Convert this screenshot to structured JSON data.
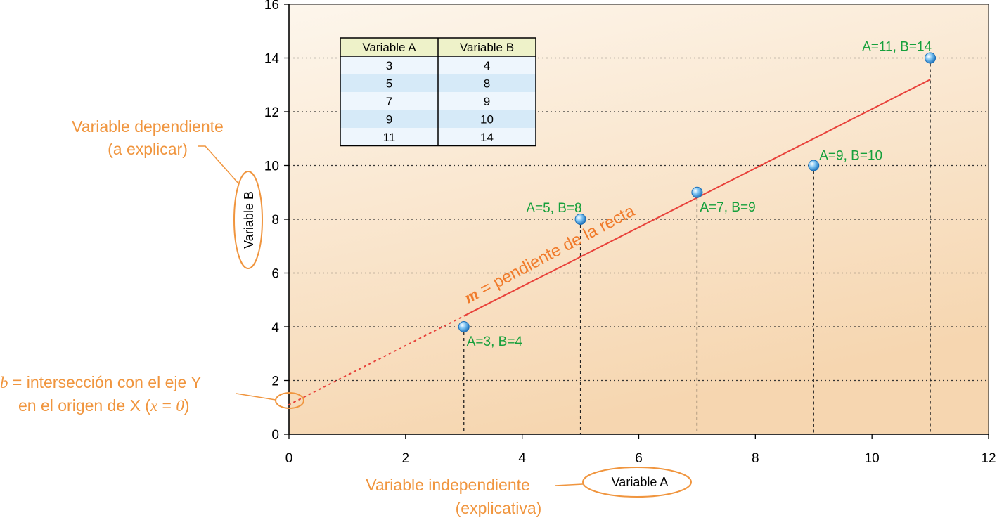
{
  "chart_data": {
    "type": "scatter",
    "x": [
      3,
      5,
      7,
      9,
      11
    ],
    "y": [
      4,
      8,
      9,
      10,
      14
    ],
    "point_labels": [
      "A=3, B=4",
      "A=5, B=8",
      "A=7, B=9",
      "A=9, B=10",
      "A=11, B=14"
    ],
    "xlabel": "Variable A",
    "ylabel": "Variable B",
    "xlim": [
      0,
      12
    ],
    "ylim": [
      0,
      16
    ],
    "x_ticks": [
      "0",
      "2",
      "4",
      "6",
      "8",
      "10",
      "12"
    ],
    "y_ticks": [
      "0",
      "2",
      "4",
      "6",
      "8",
      "10",
      "12",
      "14",
      "16"
    ],
    "grid": "horizontal dotted",
    "regression_line": {
      "intercept": 1.1,
      "slope": 1.1,
      "solid_from_x": 3,
      "solid_to_x": 11
    },
    "table": {
      "headers": [
        "Variable A",
        "Variable B"
      ],
      "rows": [
        [
          "3",
          "4"
        ],
        [
          "5",
          "8"
        ],
        [
          "7",
          "9"
        ],
        [
          "9",
          "10"
        ],
        [
          "11",
          "14"
        ]
      ]
    },
    "annotations": {
      "slope_symbol": "m",
      "slope_text": " = pendiente de la recta",
      "dependent_line1": "Variable dependiente",
      "dependent_line2": "(a explicar)",
      "independent_line1": "Variable independiente",
      "independent_line2": "(explicativa)",
      "intercept_symbol": "b",
      "intercept_line1_rest": " = intersección con el eje Y",
      "intercept_line2_pre": "en el origen de X (",
      "intercept_line2_x": "x",
      "intercept_line2_eq": " = ",
      "intercept_line2_zero": "0",
      "intercept_line2_post": ")"
    }
  },
  "colors": {
    "plot_bg_top": "#fdf6ec",
    "plot_bg_bottom": "#f7d9b5",
    "regression": "#e8413a",
    "point": "#2a8fd6",
    "point_label": "#16a03c",
    "annotation": "#f0953e",
    "table_header": "#eef2c9",
    "table_row_alt": "#d6eaf8"
  }
}
